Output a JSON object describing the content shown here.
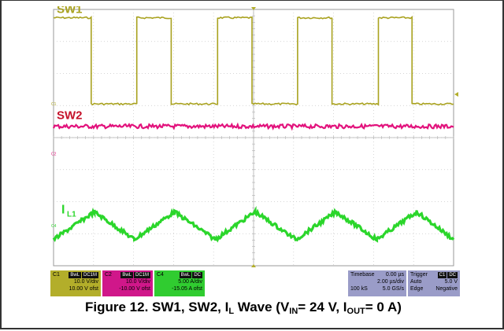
{
  "chart_data": {
    "type": "line",
    "title": "",
    "xlabel": "",
    "ylabel": "",
    "grid": true,
    "divisions": {
      "x": 10,
      "y": 8
    },
    "xlim": [
      0,
      10
    ],
    "ylim": [
      0,
      8
    ],
    "series": [
      {
        "name": "SW1",
        "color": "#a9a21f",
        "x": [
          0,
          0.94,
          0.94,
          2.08,
          2.08,
          2.94,
          2.94,
          4.1,
          4.1,
          4.96,
          4.96,
          6.1,
          6.1,
          6.96,
          6.96,
          8.12,
          8.12,
          8.96,
          8.96,
          10
        ],
        "y": [
          7.74,
          7.74,
          5.05,
          5.05,
          7.74,
          7.74,
          5.05,
          5.05,
          7.74,
          7.74,
          5.05,
          5.05,
          7.74,
          7.74,
          5.05,
          5.05,
          7.74,
          7.74,
          5.05,
          5.05
        ]
      },
      {
        "name": "SW2",
        "color": "#e2127c",
        "x": [
          0,
          10
        ],
        "y": [
          4.35,
          4.35
        ]
      },
      {
        "name": "IL1",
        "color": "#2bd62b",
        "x": [
          0,
          1.02,
          2.02,
          3.02,
          4.04,
          5.04,
          6.06,
          7.06,
          8.08,
          9.08,
          10
        ],
        "y": [
          0.82,
          1.68,
          0.82,
          1.68,
          0.82,
          1.68,
          0.82,
          1.68,
          0.82,
          1.68,
          0.82
        ]
      }
    ],
    "labels": {
      "sw1": "SW1",
      "sw2": "SW2",
      "il_main": "I",
      "il_sub": "L1",
      "c1_marker": "C1",
      "c2_marker": "C2",
      "c4_marker": "C4"
    }
  },
  "status": {
    "c1": {
      "name": "C1",
      "badges": [
        "BwL",
        "DC1M"
      ],
      "line1": "10.0 V/div",
      "line2": "10.00 V ofst",
      "color": "#b3ae2a"
    },
    "c2": {
      "name": "C2",
      "badges": [
        "BwL",
        "DC1M"
      ],
      "line1": "10.0 V/div",
      "line2": "-10.00 V ofst",
      "color": "#d0178a"
    },
    "c4": {
      "name": "C4",
      "badges": [
        "BwL",
        "DC"
      ],
      "line1": "5.00 A/div",
      "line2": "-15.05 A ofst",
      "color": "#30cc30"
    },
    "timebase": {
      "label": "Timebase",
      "value": "0.00 µs",
      "row2a": "",
      "row2b": "2.00 µs/div",
      "row3a": "100 kS",
      "row3b": "5.0 GS/s",
      "color": "#9a9cc8"
    },
    "trigger": {
      "label": "Trigger",
      "badges": [
        "C1",
        "DC"
      ],
      "row2a": "Auto",
      "row2b": "5.0 V",
      "row3a": "Edge",
      "row3b": "Negative",
      "color": "#9a9cc8"
    }
  },
  "caption": {
    "prefix": "Figure 12. SW1, SW2, I",
    "sub1": "L",
    "mid1": " Wave (V",
    "sub2": "IN",
    "mid2": "= 24 V, I",
    "sub3": "OUT",
    "end": "= 0 A)"
  }
}
